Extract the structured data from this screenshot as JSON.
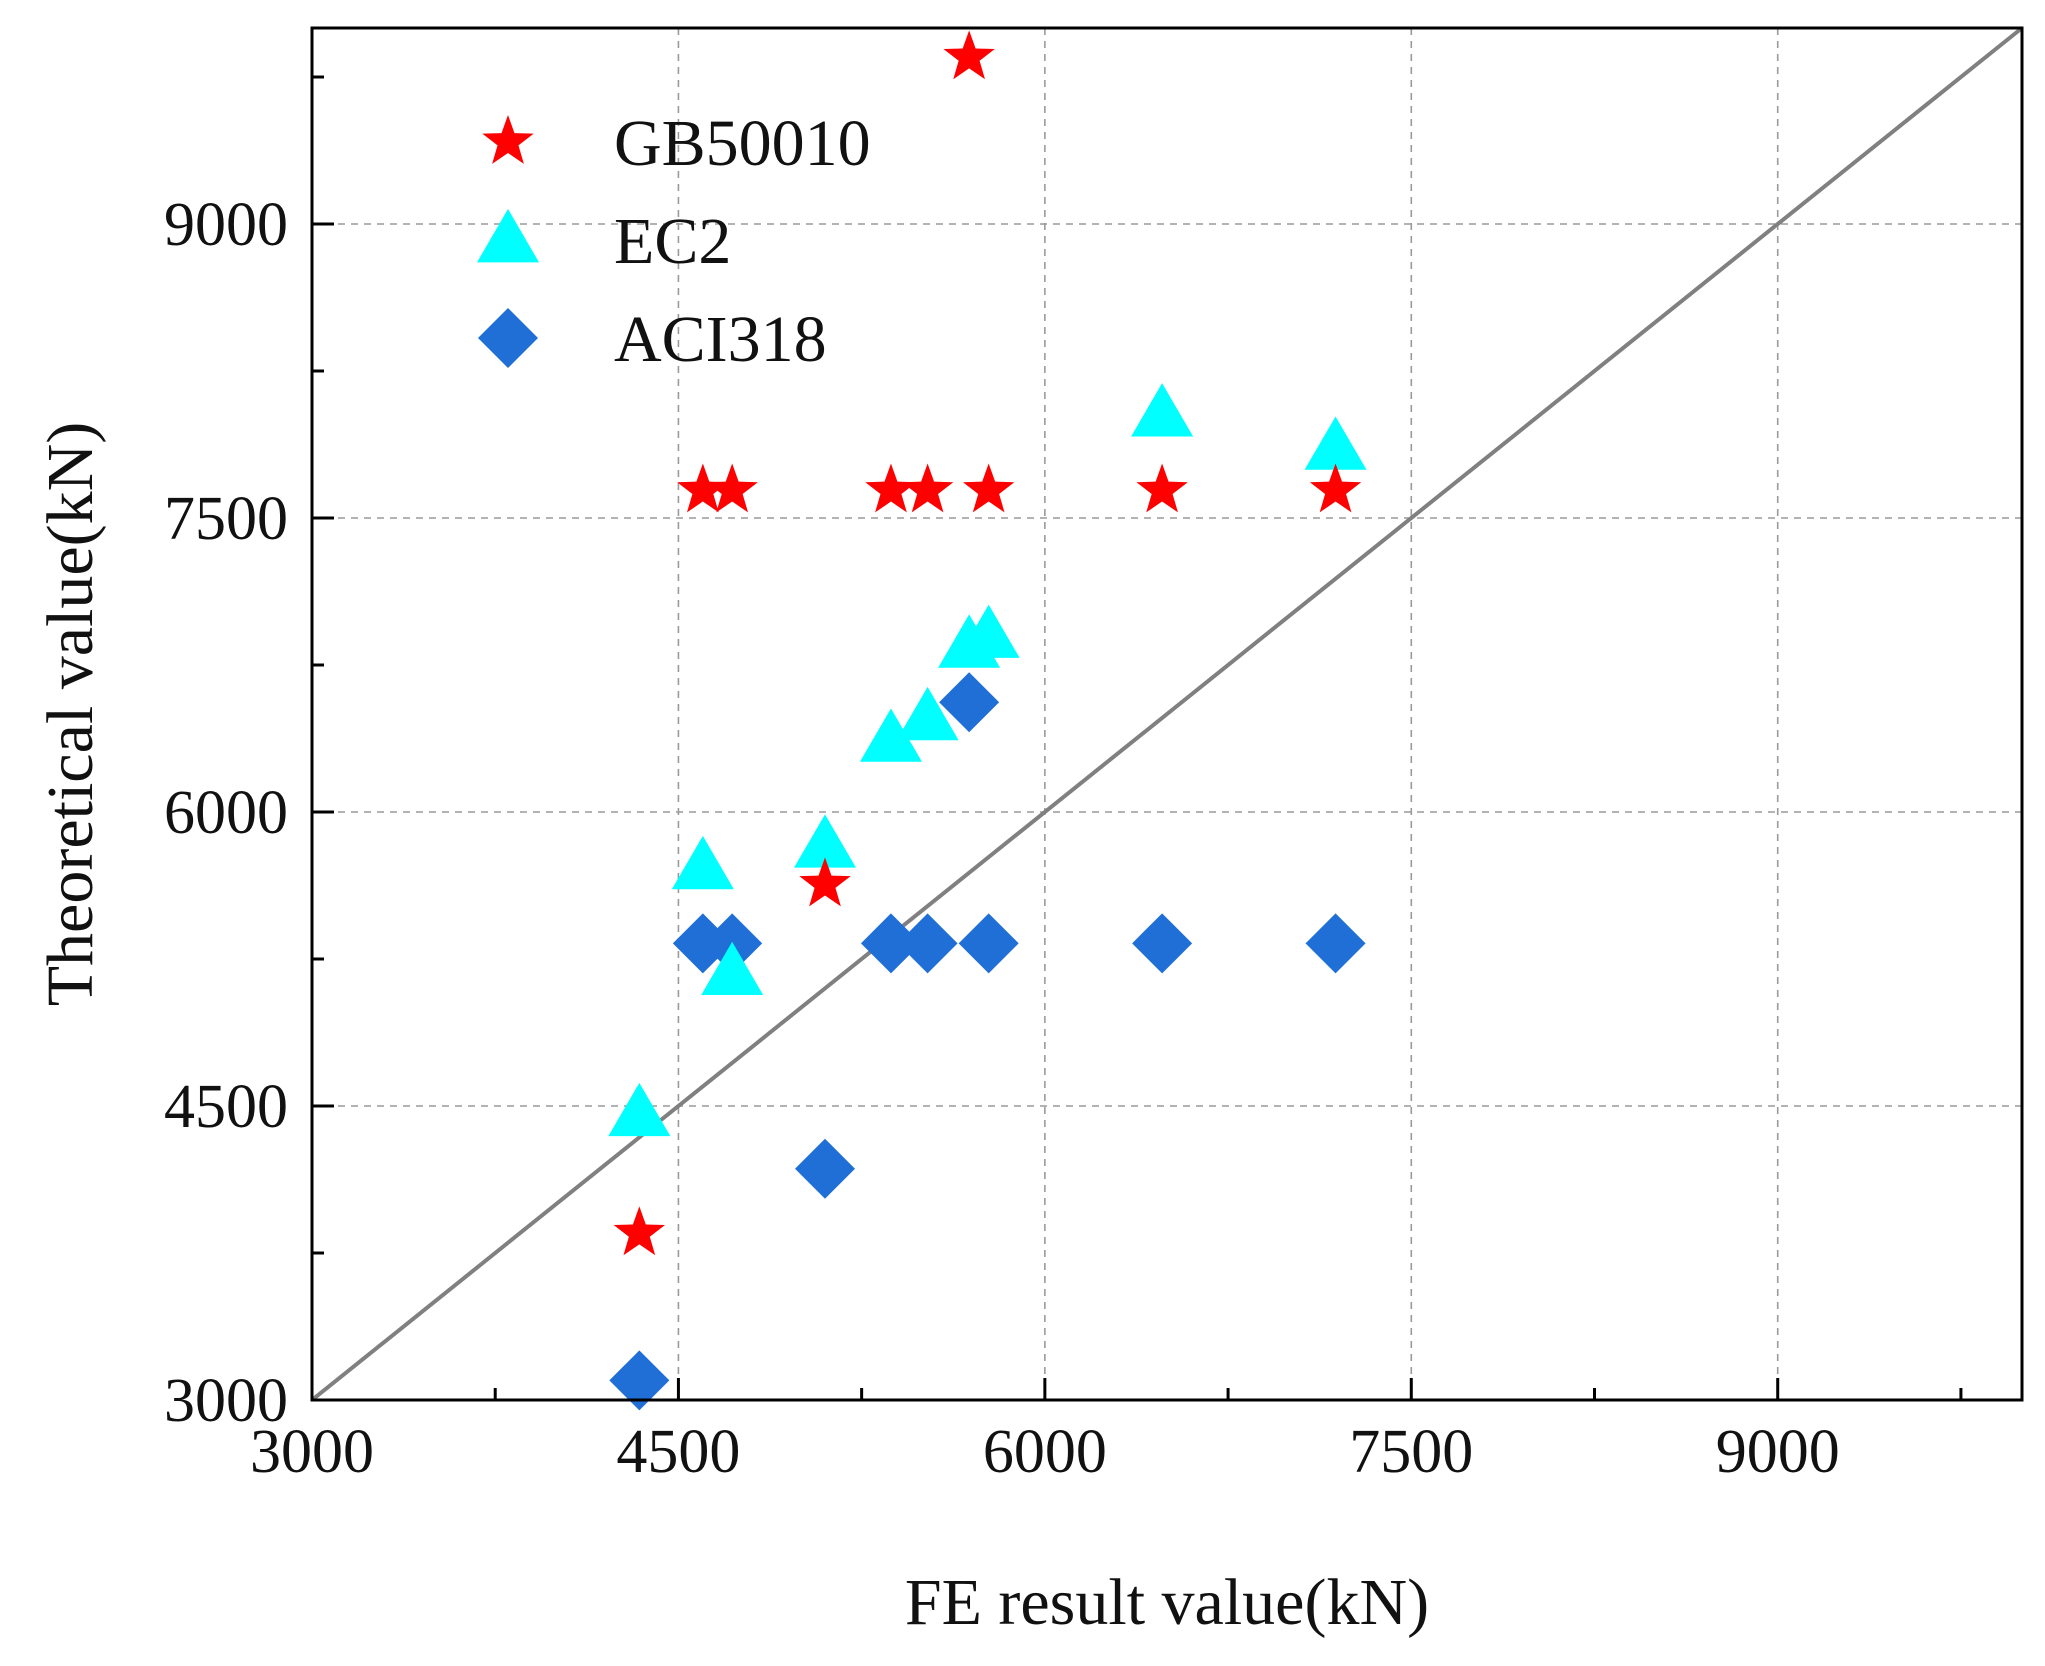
{
  "chart_data": {
    "type": "scatter",
    "title": "",
    "xlabel": "FE result value(kN)",
    "ylabel": "Theoretical value(kN)",
    "xlim": [
      3000,
      10000
    ],
    "ylim": [
      3000,
      10000
    ],
    "x_ticks": [
      3000,
      4500,
      6000,
      7500,
      9000
    ],
    "y_ticks": [
      3000,
      4500,
      6000,
      7500,
      9000
    ],
    "minor_step": 750,
    "grid": true,
    "legend_position": "top-left",
    "reference_line": {
      "from": [
        3000,
        3000
      ],
      "to": [
        10000,
        10000
      ],
      "color": "#808080"
    },
    "series": [
      {
        "name": "GB50010",
        "marker": "star",
        "color": "#ff0000",
        "points": [
          [
            5690,
            9850
          ],
          [
            4600,
            7640
          ],
          [
            4720,
            7640
          ],
          [
            5370,
            7640
          ],
          [
            5520,
            7640
          ],
          [
            5770,
            7640
          ],
          [
            6480,
            7640
          ],
          [
            7190,
            7640
          ],
          [
            5100,
            5630
          ],
          [
            4340,
            3850
          ]
        ]
      },
      {
        "name": "EC2",
        "marker": "triangle",
        "color": "#00ffff",
        "points": [
          [
            6480,
            8030
          ],
          [
            7190,
            7860
          ],
          [
            5770,
            6900
          ],
          [
            5690,
            6850
          ],
          [
            5520,
            6480
          ],
          [
            5370,
            6370
          ],
          [
            5100,
            5830
          ],
          [
            4600,
            5720
          ],
          [
            4720,
            5180
          ],
          [
            4340,
            4460
          ]
        ]
      },
      {
        "name": "ACI318",
        "marker": "diamond",
        "color": "#1f6fd6",
        "points": [
          [
            5690,
            6560
          ],
          [
            4600,
            5330
          ],
          [
            4720,
            5330
          ],
          [
            5370,
            5330
          ],
          [
            5520,
            5330
          ],
          [
            5770,
            5330
          ],
          [
            6480,
            5330
          ],
          [
            7190,
            5330
          ],
          [
            5100,
            4180
          ],
          [
            4340,
            3100
          ]
        ]
      }
    ]
  }
}
